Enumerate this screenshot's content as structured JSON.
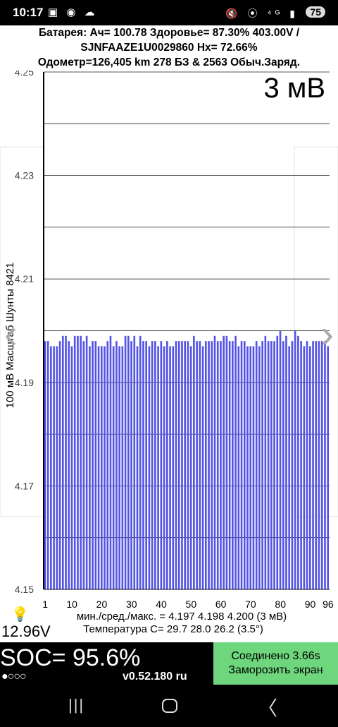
{
  "status_bar": {
    "time": "10:17",
    "left_icons_label": "▣ ◉ ☁",
    "right_icons_label": "🔇 ⦿ ⁴ᴳ ▮",
    "battery": "75"
  },
  "info": {
    "line1": "Батарея:  Ач= 100.78  Здоровье= 87.30%   403.00V  /",
    "line2": "SJNFAAZE1U0029860   Hx= 72.66%",
    "line3": "Одометр=126,405 km 278 БЗ & 2563 Обыч.Заряд."
  },
  "icons": {
    "nav_left": "chevron-left-icon",
    "nav_right": "chevron-right-icon",
    "bulb": "lightbulb-icon"
  },
  "chart_data": {
    "type": "bar",
    "annotation": "3 мВ",
    "ylabel": "100 мВ Масштаб   Шунты 8421",
    "ylim": [
      4.15,
      4.25
    ],
    "yticks": [
      "4.25",
      "4.23",
      "4.21",
      "4.19",
      "4.17",
      "4.15"
    ],
    "xticks": [
      "1",
      "10",
      "20",
      "30",
      "40",
      "50",
      "60",
      "70",
      "80",
      "90",
      "96"
    ],
    "bar_color": "#5353e6",
    "grid": true,
    "categories": [
      1,
      2,
      3,
      4,
      5,
      6,
      7,
      8,
      9,
      10,
      11,
      12,
      13,
      14,
      15,
      16,
      17,
      18,
      19,
      20,
      21,
      22,
      23,
      24,
      25,
      26,
      27,
      28,
      29,
      30,
      31,
      32,
      33,
      34,
      35,
      36,
      37,
      38,
      39,
      40,
      41,
      42,
      43,
      44,
      45,
      46,
      47,
      48,
      49,
      50,
      51,
      52,
      53,
      54,
      55,
      56,
      57,
      58,
      59,
      60,
      61,
      62,
      63,
      64,
      65,
      66,
      67,
      68,
      69,
      70,
      71,
      72,
      73,
      74,
      75,
      76,
      77,
      78,
      79,
      80,
      81,
      82,
      83,
      84,
      85,
      86,
      87,
      88,
      89,
      90,
      91,
      92,
      93,
      94,
      95,
      96
    ],
    "values": [
      4.198,
      4.198,
      4.197,
      4.197,
      4.197,
      4.198,
      4.199,
      4.199,
      4.198,
      4.197,
      4.199,
      4.199,
      4.199,
      4.198,
      4.199,
      4.197,
      4.198,
      4.198,
      4.197,
      4.197,
      4.197,
      4.198,
      4.199,
      4.197,
      4.198,
      4.197,
      4.197,
      4.199,
      4.199,
      4.198,
      4.199,
      4.197,
      4.199,
      4.198,
      4.198,
      4.197,
      4.198,
      4.198,
      4.197,
      4.198,
      4.197,
      4.198,
      4.197,
      4.197,
      4.198,
      4.198,
      4.198,
      4.198,
      4.198,
      4.197,
      4.199,
      4.198,
      4.198,
      4.197,
      4.198,
      4.198,
      4.198,
      4.199,
      4.198,
      4.198,
      4.199,
      4.199,
      4.198,
      4.198,
      4.199,
      4.197,
      4.198,
      4.198,
      4.197,
      4.197,
      4.197,
      4.198,
      4.197,
      4.198,
      4.199,
      4.198,
      4.198,
      4.198,
      4.199,
      4.2,
      4.198,
      4.199,
      4.197,
      4.198,
      4.2,
      4.199,
      4.198,
      4.197,
      4.198,
      4.197,
      4.198,
      4.198,
      4.198,
      4.198,
      4.198,
      4.197
    ],
    "stats": "мин./сред./макс. = 4.197  4.198  4.200  (3 мВ)",
    "temperature": "Температура С= 29.7  28.0  26.2  (3.5°)"
  },
  "bottom": {
    "voltage": "12.96V",
    "soc": "SOC= 95.6%",
    "dots": "●○○○",
    "version": "v0.52.180 ru",
    "connect_line1": "Соединено 3.66s",
    "connect_line2": "Заморозить экран"
  },
  "navbar": {
    "recent": "|||",
    "back": "〈"
  }
}
